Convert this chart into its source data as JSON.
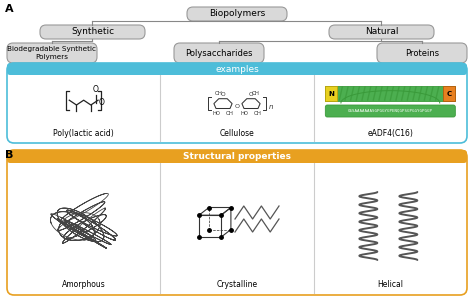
{
  "bg_color": "#ffffff",
  "gray_box": "#d9d9d9",
  "blue_bar": "#4dbdd9",
  "yellow_bar": "#e8a020",
  "border_color": "#999999",
  "node_box_top": "Biopolymers",
  "node_synthetic": "Synthetic",
  "node_natural": "Natural",
  "node_bio": "Biodegradable Synthetic\nPolymers",
  "node_poly": "Polysaccharides",
  "node_proteins": "Proteins",
  "label_examples": "examples",
  "label_structural": "Structural properties",
  "label_pla": "Poly(lactic acid)",
  "label_cellulose": "Cellulose",
  "label_eadf": "eADF4(C16)",
  "label_amorphous": "Amorphous",
  "label_crystalline": "Crystalline",
  "label_helical": "Helical",
  "label_A": "A",
  "label_B": "B",
  "sequence_text": "GSSAAAAAAASGPGGYGPENQGPSGPGGYGPGGP",
  "green_dark": "#3a9a3a",
  "green_mid": "#4caf50",
  "yellow_N": "#e8d020",
  "orange_C": "#e88020"
}
